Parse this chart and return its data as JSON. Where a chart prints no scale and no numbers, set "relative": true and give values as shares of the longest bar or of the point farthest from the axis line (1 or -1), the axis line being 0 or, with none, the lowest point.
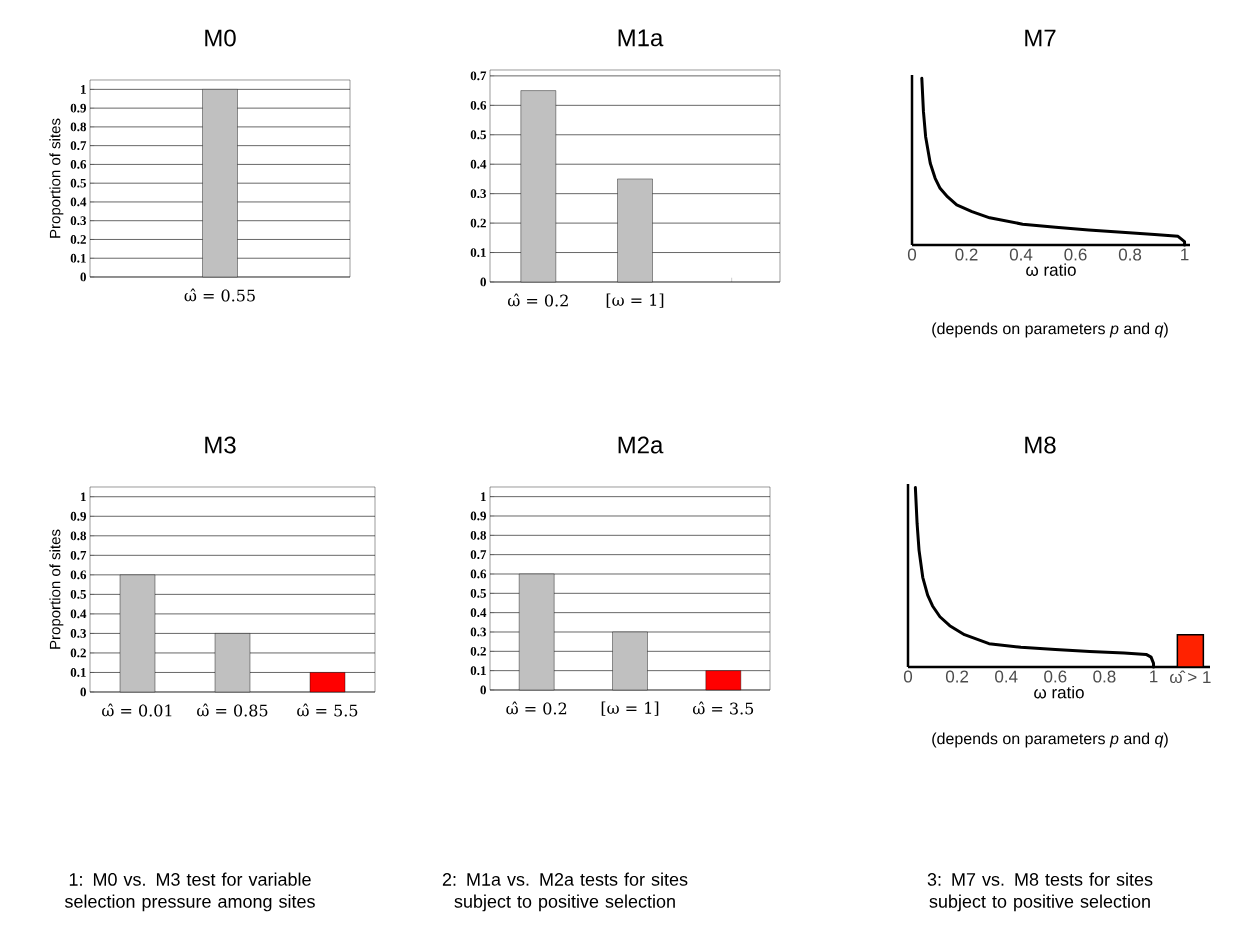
{
  "chart_data": [
    {
      "type": "bar",
      "title": "M0",
      "ylabel": "Proportion of sites",
      "categories": [
        "ω̂ = 0.55"
      ],
      "values": [
        1
      ],
      "colors": [
        "#c0c0c0"
      ],
      "ylim": [
        0,
        1.05
      ],
      "yticks": [
        0,
        0.1,
        0.2,
        0.3,
        0.4,
        0.5,
        0.6,
        0.7,
        0.8,
        0.9,
        1
      ],
      "grid": "y"
    },
    {
      "type": "bar",
      "title": "M1a",
      "categories": [
        "ω̂ = 0.2",
        "[ω = 1]",
        null
      ],
      "values": [
        0.65,
        0.35,
        null
      ],
      "colors": [
        "#c0c0c0",
        "#c0c0c0",
        "#c0c0c0"
      ],
      "ylim": [
        0,
        0.72
      ],
      "yticks": [
        0,
        0.1,
        0.2,
        0.3,
        0.4,
        0.5,
        0.6,
        0.7
      ],
      "grid": "y"
    },
    {
      "type": "line",
      "title": "M7",
      "xlabel": "ω ratio",
      "annotations": [
        "(depends on parameters *p* and *q*)"
      ],
      "relative": true,
      "color": "#000000",
      "x": [
        0.036,
        0.042,
        0.05,
        0.067,
        0.085,
        0.103,
        0.13,
        0.164,
        0.22,
        0.285,
        0.406,
        0.527,
        0.648,
        0.77,
        0.89,
        0.976,
        1.0,
        1.0
      ],
      "values": [
        1,
        0.8,
        0.65,
        0.49,
        0.4,
        0.34,
        0.29,
        0.24,
        0.2,
        0.163,
        0.125,
        0.106,
        0.09,
        0.077,
        0.063,
        0.052,
        0.02,
        0
      ],
      "xlim": [
        0,
        1.02
      ],
      "xticks": [
        0,
        0.2,
        0.4,
        0.6,
        0.8,
        1
      ]
    },
    {
      "type": "bar",
      "title": "M3",
      "ylabel": "Proportion of sites",
      "categories": [
        "ω̂ = 0.01",
        "ω̂ = 0.85",
        "ω̂ = 5.5"
      ],
      "values": [
        0.6,
        0.3,
        0.1
      ],
      "colors": [
        "#c0c0c0",
        "#c0c0c0",
        "#ff0000"
      ],
      "ylim": [
        0,
        1.05
      ],
      "yticks": [
        0,
        0.1,
        0.2,
        0.3,
        0.4,
        0.5,
        0.6,
        0.7,
        0.8,
        0.9,
        1
      ],
      "grid": "y",
      "annotations": [
        "1:  M0 vs. M3 test for variable selection pressure among sites"
      ]
    },
    {
      "type": "bar",
      "title": "M2a",
      "categories": [
        "ω̂ = 0.2",
        "[ω = 1]",
        "ω̂ = 3.5"
      ],
      "values": [
        0.6,
        0.3,
        0.1
      ],
      "colors": [
        "#c0c0c0",
        "#c0c0c0",
        "#ff0000"
      ],
      "ylim": [
        0,
        1.05
      ],
      "yticks": [
        0,
        0.1,
        0.2,
        0.3,
        0.4,
        0.5,
        0.6,
        0.7,
        0.8,
        0.9,
        1
      ],
      "grid": "y",
      "annotations": [
        "2:  M1a vs. M2a tests for sites subject to positive selection"
      ]
    },
    {
      "type": "line",
      "title": "M8",
      "xlabel": "ω ratio",
      "annotations": [
        "(depends on parameters *p* and *q*)",
        "3:  M7 vs. M8 tests for sites subject to positive selection"
      ],
      "relative": true,
      "series": [
        {
          "type": "line",
          "color": "#000000",
          "x": [
            0.03,
            0.037,
            0.045,
            0.06,
            0.08,
            0.1,
            0.13,
            0.17,
            0.23,
            0.33,
            0.46,
            0.6,
            0.74,
            0.88,
            0.97,
            0.99,
            1.0,
            1.0
          ],
          "values": [
            1,
            0.8,
            0.65,
            0.5,
            0.4,
            0.34,
            0.28,
            0.23,
            0.18,
            0.13,
            0.11,
            0.097,
            0.087,
            0.078,
            0.07,
            0.055,
            0.02,
            0
          ]
        },
        {
          "type": "bar",
          "color": "#ff2200",
          "x": [
            1.15
          ],
          "values": [
            0.18
          ]
        }
      ],
      "xlim": [
        0,
        1.23
      ],
      "xticks": [
        0,
        0.2,
        0.4,
        0.6,
        0.8,
        1,
        {
          "value": 1.15,
          "label": "ω̂ > 1"
        }
      ]
    }
  ]
}
